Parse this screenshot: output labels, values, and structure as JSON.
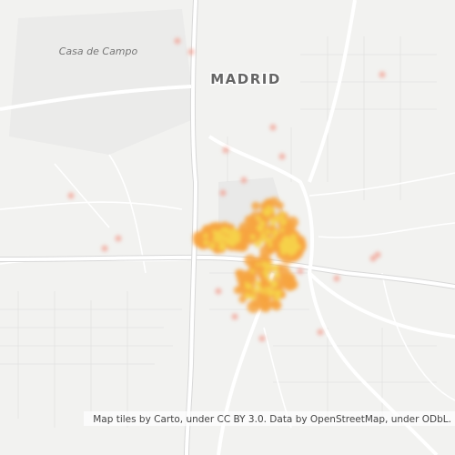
{
  "map": {
    "labels": [
      "Casa de Campo",
      "MADRID"
    ],
    "attribution": "Map tiles by Carto, under CC BY 3.0. Data by OpenStreetMap, under ODbL."
  }
}
